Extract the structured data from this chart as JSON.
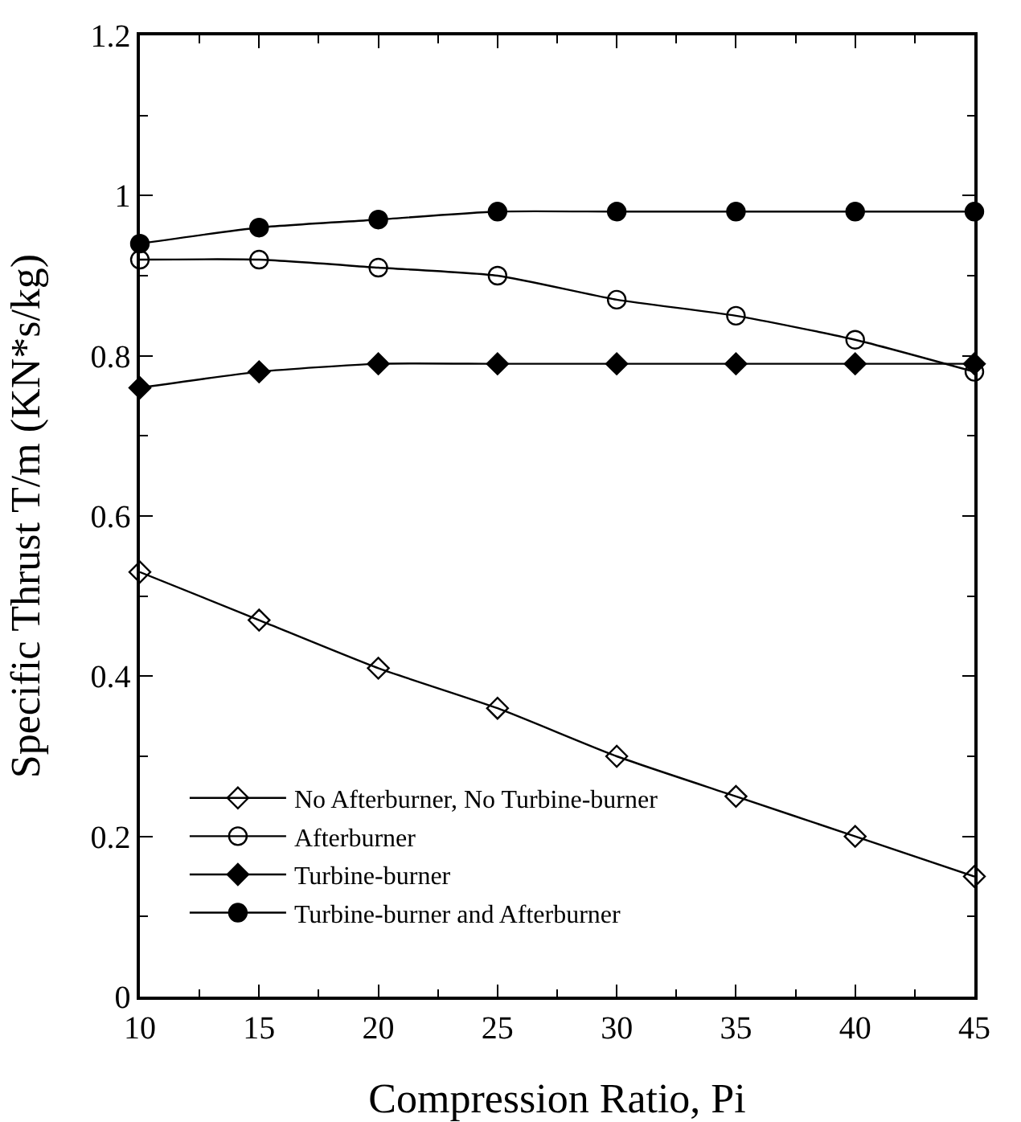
{
  "chart_data": {
    "type": "line",
    "xlabel": "Compression Ratio, Pi",
    "ylabel": "Specific Thrust T/m (KN*s/kg)",
    "x": [
      10,
      15,
      20,
      25,
      30,
      35,
      40,
      45
    ],
    "series": [
      {
        "name": "No Afterburner, No Turbine-burner",
        "color": "#000000",
        "marker": "diamond-open",
        "values": [
          0.53,
          0.47,
          0.41,
          0.36,
          0.3,
          0.25,
          0.2,
          0.15
        ]
      },
      {
        "name": "Afterburner",
        "color": "#000000",
        "marker": "circle-open",
        "values": [
          0.92,
          0.92,
          0.91,
          0.9,
          0.87,
          0.85,
          0.82,
          0.78
        ]
      },
      {
        "name": "Turbine-burner",
        "color": "#000000",
        "marker": "diamond",
        "values": [
          0.76,
          0.78,
          0.79,
          0.79,
          0.79,
          0.79,
          0.79,
          0.79
        ]
      },
      {
        "name": "Turbine-burner and Afterburner",
        "color": "#000000",
        "marker": "circle",
        "values": [
          0.94,
          0.96,
          0.97,
          0.98,
          0.98,
          0.98,
          0.98,
          0.98
        ]
      }
    ],
    "xlim": [
      10,
      45
    ],
    "xticks": [
      10,
      15,
      20,
      25,
      30,
      35,
      40,
      45
    ],
    "ylim": [
      0,
      1.2
    ],
    "yticks": [
      0,
      0.2,
      0.4,
      0.6,
      0.8,
      1,
      1.2
    ],
    "grid": false,
    "legend": "bottom left",
    "line_style": "solid"
  }
}
